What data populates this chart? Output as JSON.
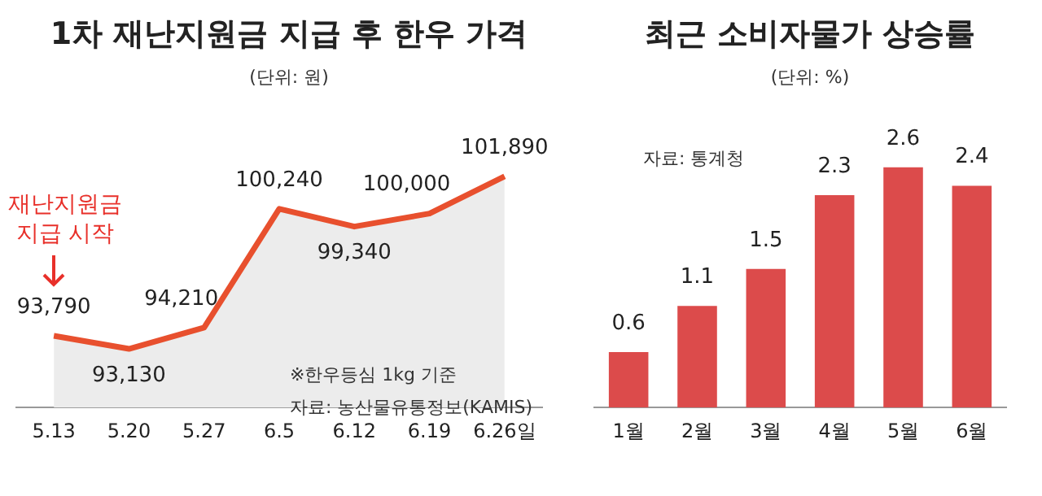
{
  "chart_data": [
    {
      "type": "area",
      "title": "1차 재난지원금 지급 후 한우 가격",
      "subtitle": "(단위: 원)",
      "categories": [
        "5.13",
        "5.20",
        "5.27",
        "6.5",
        "6.12",
        "6.19",
        "6.26일"
      ],
      "series": [
        {
          "color": "#e8502e",
          "values": [
            93790,
            93130,
            94210,
            100240,
            99340,
            100000,
            101890
          ],
          "value_labels": [
            "93,790",
            "93,130",
            "94,210",
            "100,240",
            "99,340",
            "100,000",
            "101,890"
          ]
        }
      ],
      "tick_labels": "x",
      "legend": false,
      "grid": false,
      "annotations": [
        "재난지원금 지급 시작",
        "※한우등심 1kg 기준",
        "자료: 농산물유통정보(KAMIS)"
      ]
    },
    {
      "type": "bar",
      "title": "최근 소비자물가 상승률",
      "subtitle": "(단위: %)",
      "categories": [
        "1월",
        "2월",
        "3월",
        "4월",
        "5월",
        "6월"
      ],
      "series": [
        {
          "color": "#dc4b4b",
          "values": [
            0.6,
            1.1,
            1.5,
            2.3,
            2.6,
            2.4
          ]
        }
      ],
      "tick_labels": "x",
      "legend": false,
      "grid": false,
      "data_labels": true,
      "annotations": [
        "자료: 통계청"
      ]
    }
  ]
}
